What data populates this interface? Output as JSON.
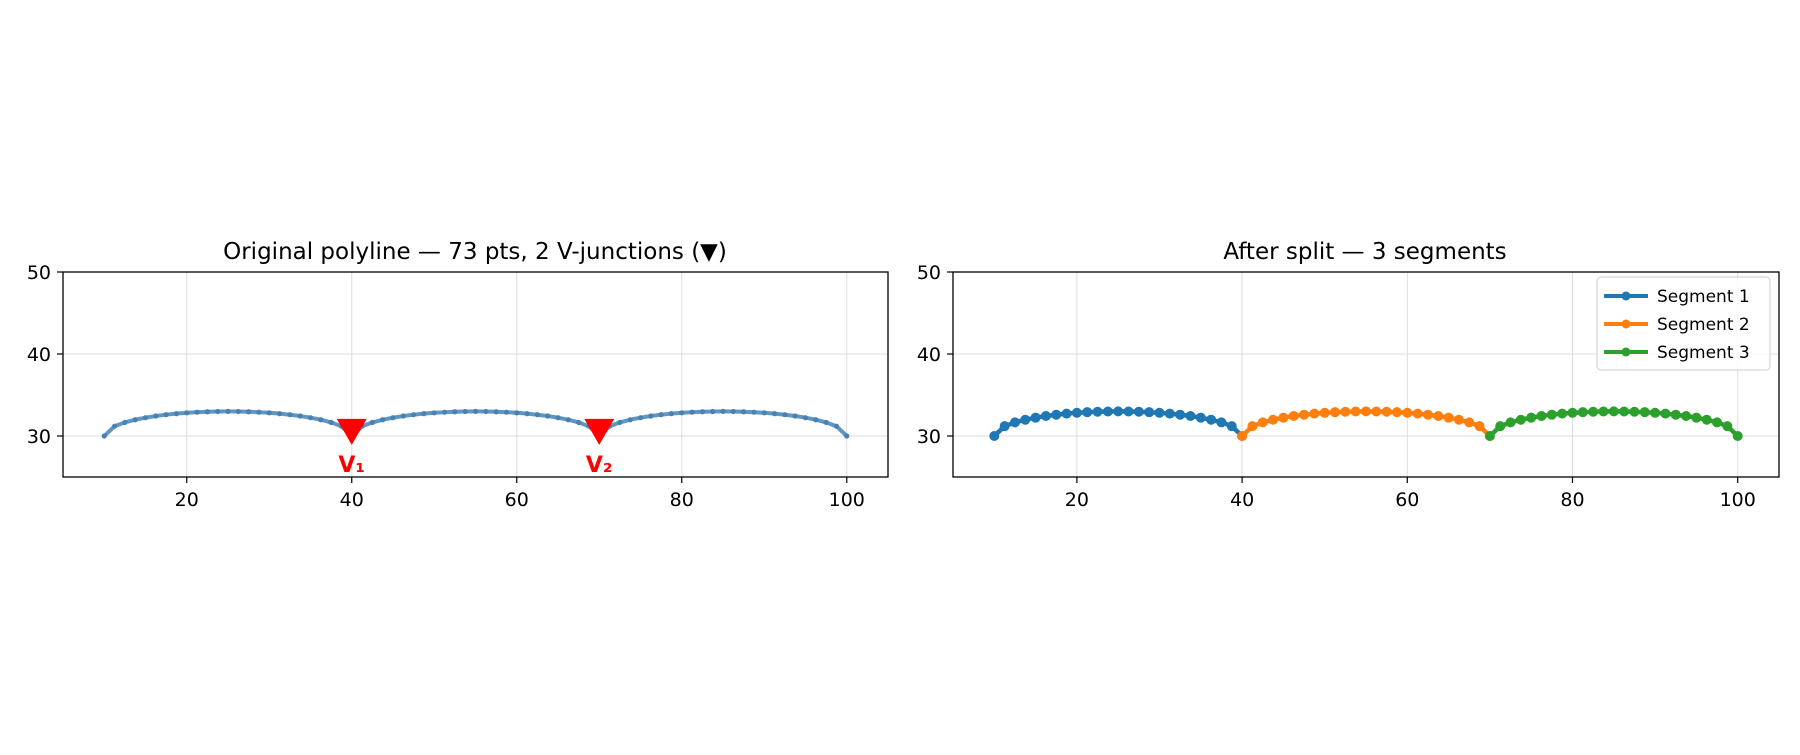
{
  "chart_data": [
    {
      "type": "line",
      "title": "Original polyline — 73 pts, 2 V-junctions (▼)",
      "xlim": [
        5,
        105
      ],
      "ylim": [
        25,
        50
      ],
      "xticks": [
        20,
        40,
        60,
        80,
        100
      ],
      "yticks": [
        30,
        40,
        50
      ],
      "grid": true,
      "legend": false,
      "colors": {
        "line": "#4682b4",
        "junction": "#ff0000"
      },
      "arcs": [
        {
          "x_start": 10,
          "x_end": 40,
          "y_base": 30,
          "y_peak": 33,
          "points": 25
        },
        {
          "x_start": 40,
          "x_end": 70,
          "y_base": 30,
          "y_peak": 33,
          "points": 25
        },
        {
          "x_start": 70,
          "x_end": 100,
          "y_base": 30,
          "y_peak": 33,
          "points": 25
        }
      ],
      "junctions": [
        {
          "label": "V₁",
          "x": 40,
          "y": 30.5
        },
        {
          "label": "V₂",
          "x": 70,
          "y": 30.5
        }
      ]
    },
    {
      "type": "line",
      "title": "After split — 3 segments",
      "xlim": [
        5,
        105
      ],
      "ylim": [
        25,
        50
      ],
      "xticks": [
        20,
        40,
        60,
        80,
        100
      ],
      "yticks": [
        30,
        40,
        50
      ],
      "grid": true,
      "legend": "top-right",
      "series": [
        {
          "name": "Segment 1",
          "color": "#1f77b4",
          "x_start": 10,
          "x_end": 40,
          "y_base": 30,
          "y_peak": 33,
          "points": 25
        },
        {
          "name": "Segment 2",
          "color": "#ff7f0e",
          "x_start": 40,
          "x_end": 70,
          "y_base": 30,
          "y_peak": 33,
          "points": 25
        },
        {
          "name": "Segment 3",
          "color": "#2ca02c",
          "x_start": 70,
          "x_end": 100,
          "y_base": 30,
          "y_peak": 33,
          "points": 25
        }
      ]
    }
  ]
}
